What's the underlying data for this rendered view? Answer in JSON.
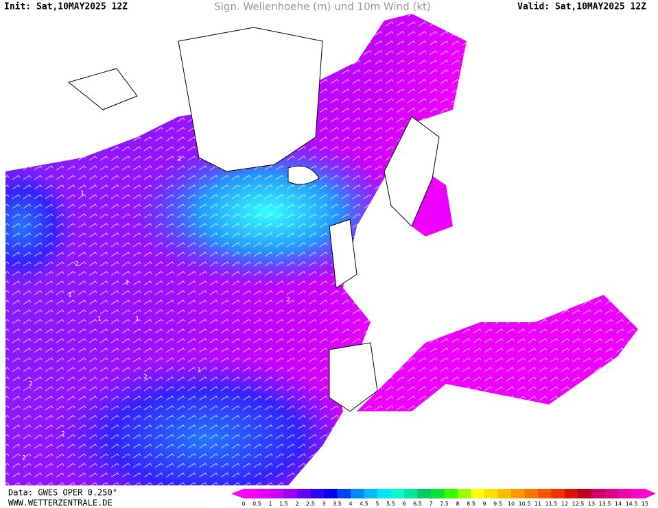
{
  "header": {
    "init": "Init: Sat,10MAY2025 12Z",
    "title": "Sign. Wellenhoehe (m) und 10m Wind (kt)",
    "valid": "Valid: Sat,10MAY2025 12Z"
  },
  "footer": {
    "source": "Data: GWES OPER 0.250°",
    "site": "WWW.WETTERZENTRALE.DE"
  },
  "map": {
    "contour_labels": [
      1,
      1,
      1,
      1,
      2,
      2,
      2,
      2,
      2,
      2,
      1,
      1,
      2,
      1
    ]
  },
  "legend": {
    "labels": [
      0,
      0.5,
      1,
      1.5,
      2,
      2.5,
      3,
      3.5,
      4,
      4.5,
      5,
      5.5,
      6,
      6.5,
      7,
      7.5,
      8,
      8.5,
      9,
      9.5,
      10,
      10.5,
      11,
      11.5,
      12,
      12.5,
      13,
      13.5,
      14,
      14.5,
      15
    ],
    "colors": [
      "#ff00ff",
      "#e600ff",
      "#cc00ff",
      "#9900ff",
      "#6600ff",
      "#3300ff",
      "#0000ff",
      "#0044ff",
      "#0088ff",
      "#00bbff",
      "#00e6ff",
      "#00ffcc",
      "#00e699",
      "#00cc66",
      "#00e633",
      "#33ff00",
      "#99ff00",
      "#ffff00",
      "#ffdd00",
      "#ffbb00",
      "#ff9900",
      "#ff7700",
      "#ff5500",
      "#ee3300",
      "#dd1100",
      "#bb0022",
      "#cc0066",
      "#dd0088",
      "#ee00aa",
      "#ff00cc"
    ]
  }
}
